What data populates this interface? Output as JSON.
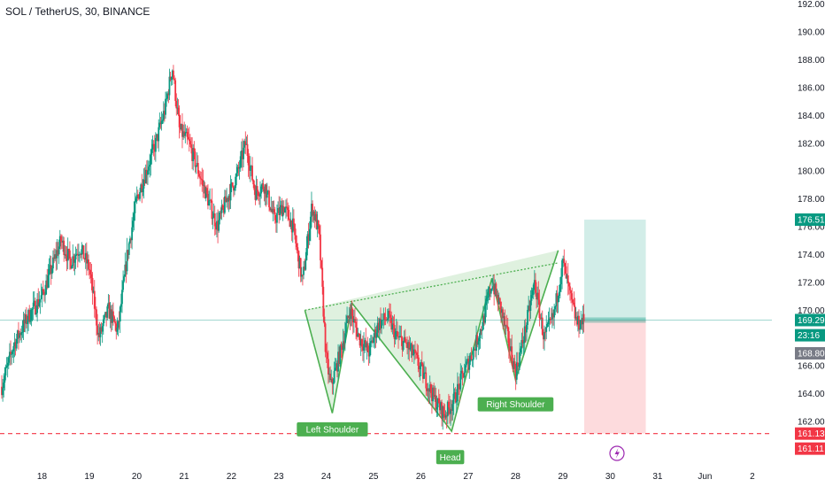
{
  "chart_data": {
    "type": "candlestick",
    "title": "SOL / TetherUS, 30, BINANCE",
    "y_ticks": [
      162.0,
      164.0,
      166.0,
      168.0,
      170.0,
      172.0,
      174.0,
      176.0,
      178.0,
      180.0,
      182.0,
      184.0,
      186.0,
      188.0,
      190.0,
      192.0
    ],
    "y_tick_labels": [
      "162.00",
      "164.00",
      "166.00",
      "168.00",
      "170.00",
      "172.00",
      "174.00",
      "176.00",
      "178.00",
      "180.00",
      "182.00",
      "184.00",
      "186.00",
      "188.00",
      "190.00",
      "192.00"
    ],
    "ylim": [
      159.2,
      192.3
    ],
    "x_days": [
      17.15,
      2.45
    ],
    "x_ticks": [
      {
        "day": 18,
        "label": "18"
      },
      {
        "day": 19,
        "label": "19"
      },
      {
        "day": 20,
        "label": "20"
      },
      {
        "day": 21,
        "label": "21"
      },
      {
        "day": 22,
        "label": "22"
      },
      {
        "day": 23,
        "label": "23"
      },
      {
        "day": 24,
        "label": "24"
      },
      {
        "day": 25,
        "label": "25"
      },
      {
        "day": 26,
        "label": "26"
      },
      {
        "day": 27,
        "label": "27"
      },
      {
        "day": 28,
        "label": "28"
      },
      {
        "day": 29,
        "label": "29"
      },
      {
        "day": 30,
        "label": "30"
      },
      {
        "day": 31,
        "label": "31"
      },
      {
        "day": 32,
        "label": "Jun"
      },
      {
        "day": 33,
        "label": "2"
      }
    ],
    "price_path": [
      [
        17.15,
        164.5
      ],
      [
        17.4,
        167.5
      ],
      [
        17.7,
        169.5
      ],
      [
        18.0,
        171.0
      ],
      [
        18.2,
        173.0
      ],
      [
        18.4,
        175.0
      ],
      [
        18.6,
        173.5
      ],
      [
        18.8,
        174.5
      ],
      [
        19.0,
        173.0
      ],
      [
        19.2,
        168.0
      ],
      [
        19.4,
        170.0
      ],
      [
        19.6,
        168.5
      ],
      [
        19.8,
        174.0
      ],
      [
        20.0,
        178.0
      ],
      [
        20.2,
        180.0
      ],
      [
        20.4,
        182.0
      ],
      [
        20.6,
        184.5
      ],
      [
        20.75,
        187.5
      ],
      [
        20.9,
        183.0
      ],
      [
        21.1,
        182.0
      ],
      [
        21.3,
        180.0
      ],
      [
        21.5,
        178.0
      ],
      [
        21.7,
        176.0
      ],
      [
        21.9,
        178.0
      ],
      [
        22.1,
        179.5
      ],
      [
        22.3,
        182.0
      ],
      [
        22.5,
        178.5
      ],
      [
        22.7,
        179.0
      ],
      [
        22.9,
        176.5
      ],
      [
        23.1,
        177.5
      ],
      [
        23.3,
        176.0
      ],
      [
        23.5,
        172.0
      ],
      [
        23.7,
        177.5
      ],
      [
        23.85,
        175.5
      ],
      [
        24.0,
        166.5
      ],
      [
        24.1,
        164.5
      ],
      [
        24.3,
        167.0
      ],
      [
        24.5,
        170.0
      ],
      [
        24.7,
        168.0
      ],
      [
        24.9,
        167.0
      ],
      [
        25.1,
        169.0
      ],
      [
        25.3,
        169.5
      ],
      [
        25.5,
        168.0
      ],
      [
        25.7,
        167.5
      ],
      [
        25.9,
        166.5
      ],
      [
        26.1,
        165.0
      ],
      [
        26.3,
        163.5
      ],
      [
        26.5,
        162.5
      ],
      [
        26.7,
        163.5
      ],
      [
        26.9,
        165.5
      ],
      [
        27.1,
        167.0
      ],
      [
        27.3,
        169.0
      ],
      [
        27.5,
        172.0
      ],
      [
        27.7,
        170.0
      ],
      [
        27.9,
        167.0
      ],
      [
        28.0,
        165.5
      ],
      [
        28.2,
        168.5
      ],
      [
        28.4,
        172.0
      ],
      [
        28.6,
        168.0
      ],
      [
        28.8,
        169.5
      ],
      [
        29.0,
        173.5
      ],
      [
        29.15,
        171.0
      ],
      [
        29.3,
        169.0
      ],
      [
        29.45,
        169.29
      ]
    ],
    "annotations": [
      {
        "text": "Left Shoulder",
        "day": 24.13,
        "price": 162.2,
        "anchor": "below"
      },
      {
        "text": "Head",
        "day": 26.62,
        "price": 160.2,
        "anchor": "below"
      },
      {
        "text": "Right Shoulder",
        "day": 28.0,
        "price": 164.0,
        "anchor": "below"
      }
    ],
    "pattern_points": [
      [
        23.55,
        170.0
      ],
      [
        24.13,
        162.6
      ],
      [
        24.55,
        170.5
      ],
      [
        26.65,
        161.3
      ],
      [
        27.5,
        172.3
      ],
      [
        28.0,
        165.0
      ],
      [
        28.9,
        174.3
      ]
    ],
    "neckline": [
      [
        23.55,
        170.0
      ],
      [
        28.9,
        173.4
      ]
    ],
    "support_level": 161.13,
    "position": {
      "start_day": 29.45,
      "end_day": 30.75,
      "entry": 169.29,
      "target": 176.51,
      "stop": 161.13
    },
    "price_pills": [
      {
        "text": "176.51",
        "price": 176.51,
        "bg": "#089981"
      },
      {
        "text": "169.29",
        "price": 169.29,
        "bg": "#089981"
      },
      {
        "text": "23:16",
        "price": 168.2,
        "bg": "#089981"
      },
      {
        "text": "168.80",
        "price": 166.9,
        "bg": "#787b86"
      },
      {
        "text": "161.13",
        "price": 161.13,
        "bg": "#f23645"
      },
      {
        "text": "161.11",
        "price": 160.05,
        "bg": "#f23645"
      }
    ],
    "colors": {
      "up": "#089981",
      "down": "#f23645",
      "pattern": "#4caf50",
      "pattern_fill": "rgba(76,175,80,0.18)",
      "support": "#f23645",
      "target_fill": "rgba(8,153,129,0.18)",
      "stop_fill": "rgba(242,54,69,0.18)",
      "axis_text": "#131722",
      "price_line": "#089981"
    }
  },
  "icons": {
    "bolt": "lightning-icon"
  }
}
